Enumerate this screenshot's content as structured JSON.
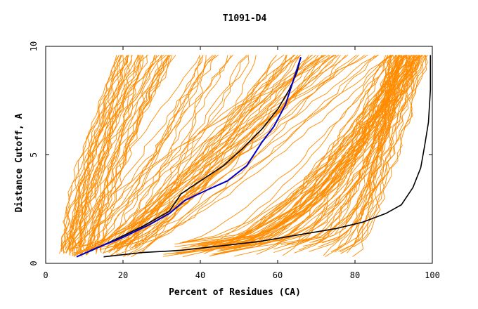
{
  "chart_data": {
    "type": "line",
    "title": "T1091-D4",
    "xlabel": "Percent of Residues (CA)",
    "ylabel": "Distance Cutoff, A",
    "xlim": [
      0,
      100
    ],
    "ylim": [
      0,
      10
    ],
    "x_ticks": [
      "0",
      "20",
      "40",
      "60",
      "80",
      "100"
    ],
    "y_ticks": [
      "0",
      "5",
      "10"
    ],
    "grid": false,
    "colors": {
      "background_models": "#ff8c00",
      "black_curves": "#000000",
      "blue_curve": "#0000cc"
    },
    "highlight_series": [
      {
        "color": "black",
        "x": [
          8,
          12,
          18,
          25,
          32,
          35,
          40,
          46,
          51,
          56,
          60,
          63,
          65,
          66
        ],
        "y": [
          0.3,
          0.6,
          1.1,
          1.7,
          2.4,
          3.2,
          3.8,
          4.5,
          5.3,
          6.2,
          7.1,
          8.0,
          8.8,
          9.5
        ]
      },
      {
        "color": "blue",
        "x": [
          8,
          13,
          20,
          27,
          32,
          36,
          42,
          47,
          52,
          56,
          59,
          62,
          64,
          66
        ],
        "y": [
          0.3,
          0.7,
          1.2,
          1.8,
          2.3,
          2.9,
          3.4,
          3.8,
          4.5,
          5.6,
          6.3,
          7.3,
          8.4,
          9.5
        ]
      },
      {
        "color": "black",
        "x": [
          15,
          25,
          35,
          45,
          55,
          65,
          75,
          82,
          88,
          92,
          95,
          97,
          98,
          99,
          99.5,
          99.5
        ],
        "y": [
          0.3,
          0.5,
          0.6,
          0.8,
          1.0,
          1.3,
          1.6,
          1.9,
          2.3,
          2.7,
          3.5,
          4.4,
          5.4,
          6.5,
          8.0,
          9.6
        ]
      }
    ],
    "background_series_count": 180
  }
}
